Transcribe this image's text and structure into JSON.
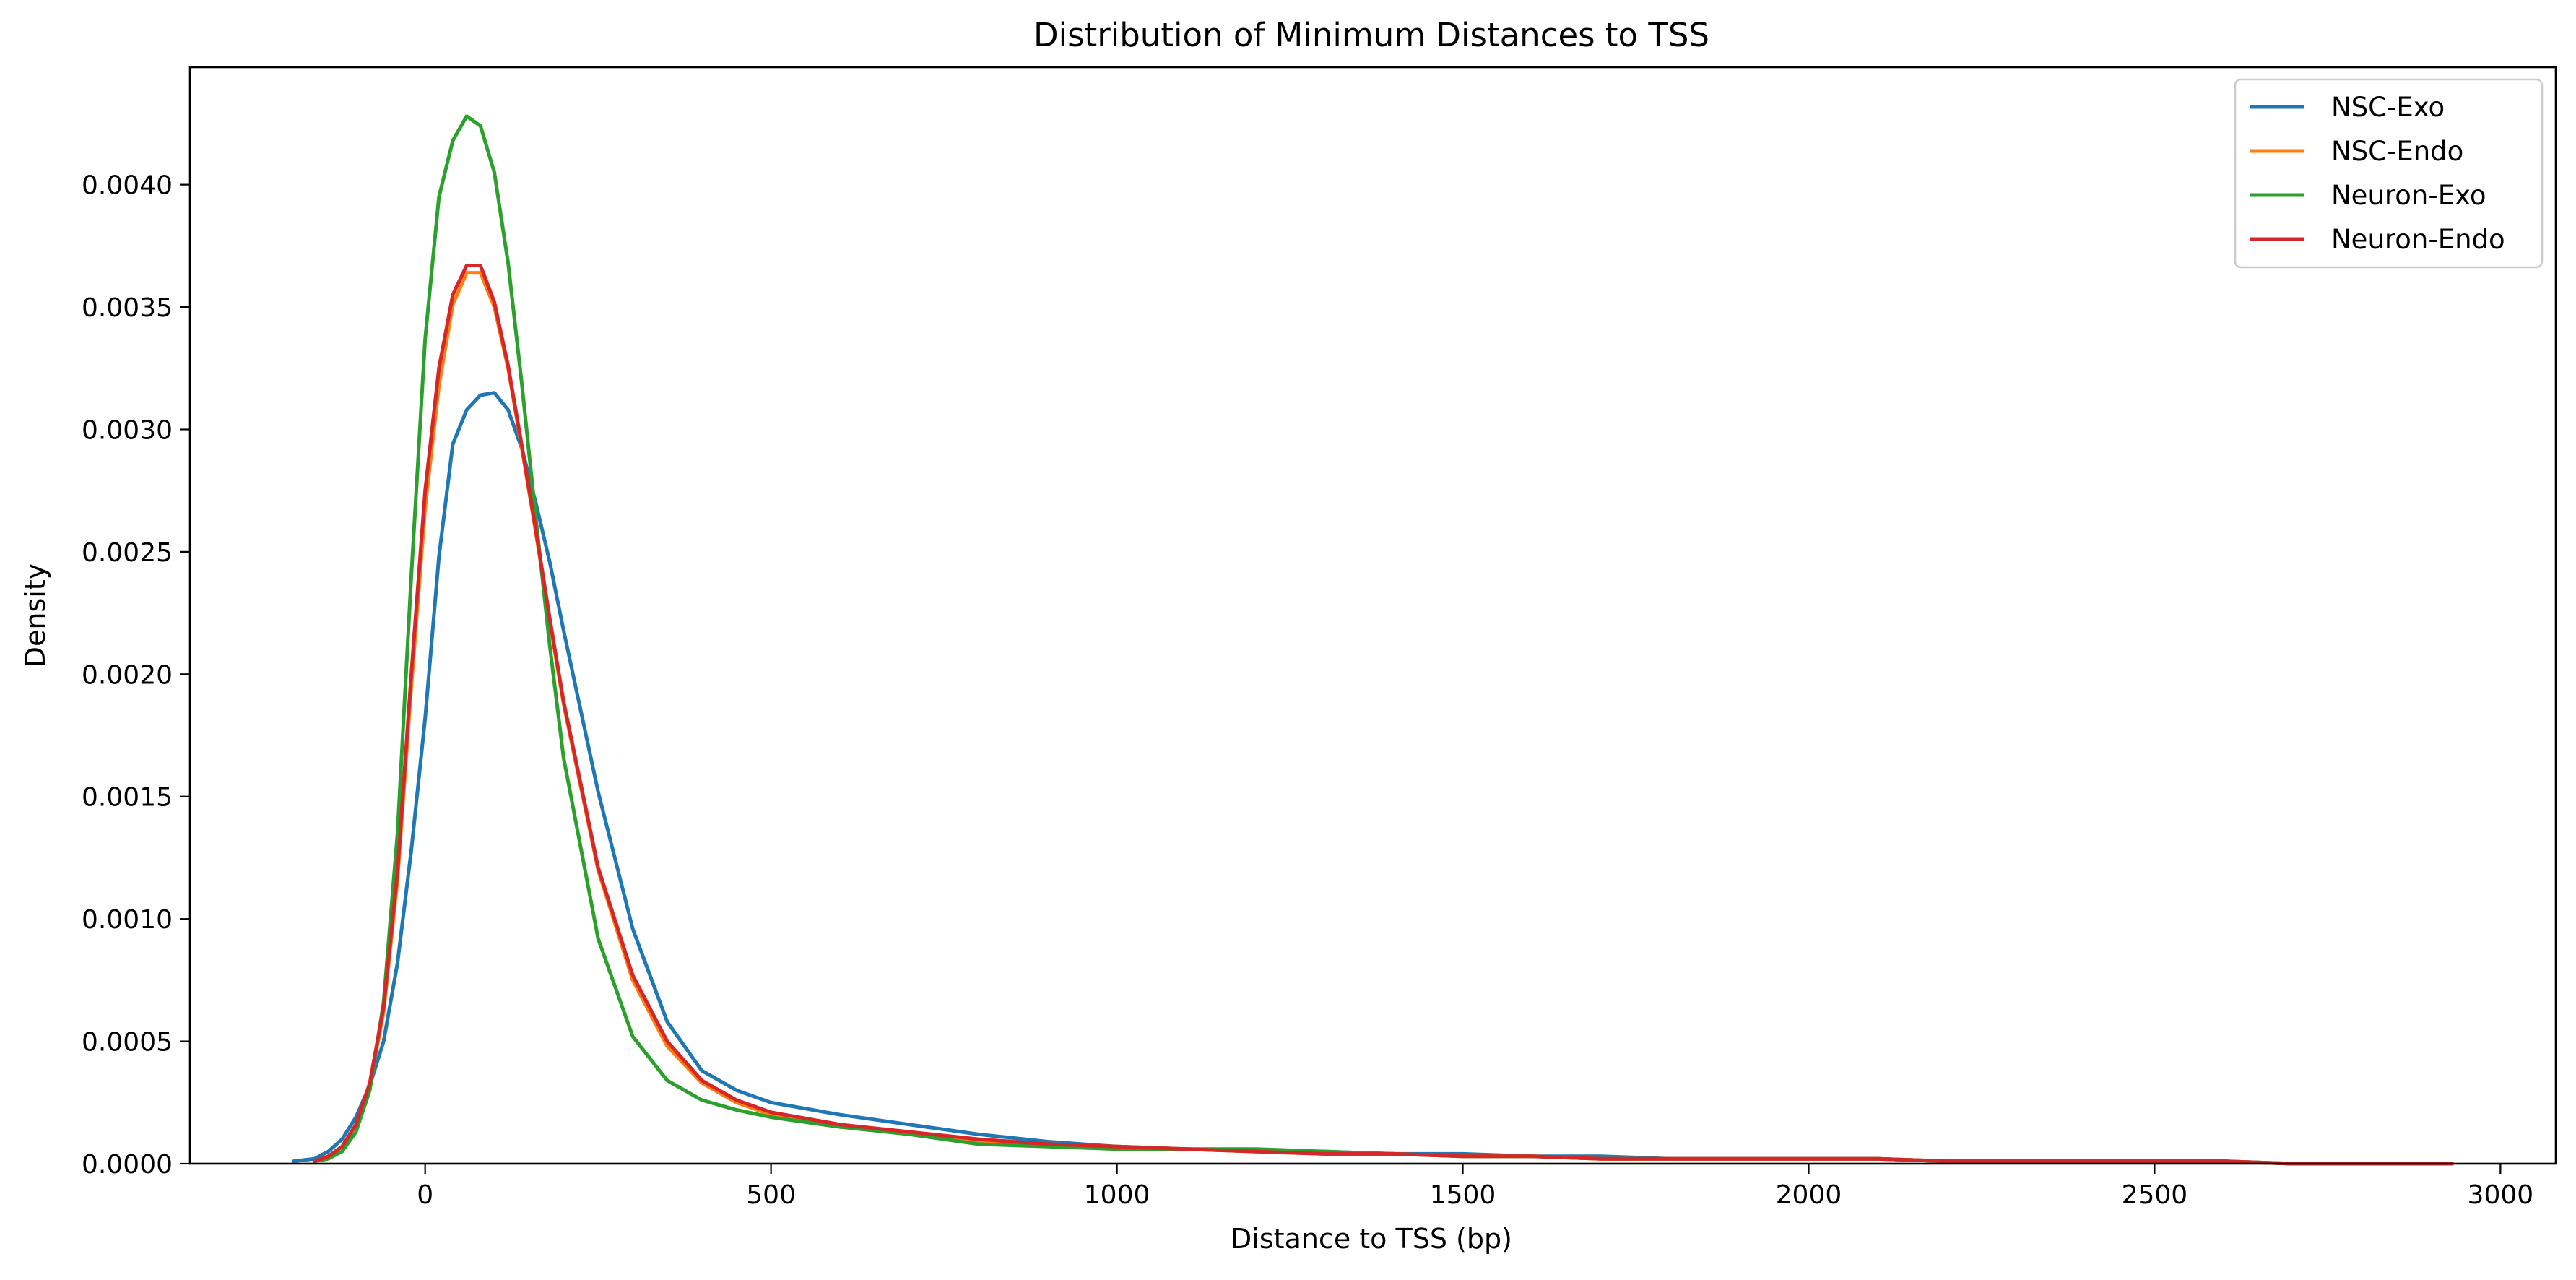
{
  "chart_data": {
    "type": "line",
    "title": "Distribution of Minimum Distances to TSS",
    "xlabel": "Distance to TSS (bp)",
    "ylabel": "Density",
    "xlim": [
      -340,
      3080
    ],
    "ylim": [
      0,
      0.00448
    ],
    "x_ticks": [
      0,
      500,
      1000,
      1500,
      2000,
      2500,
      3000
    ],
    "x_tick_labels": [
      "0",
      "500",
      "1000",
      "1500",
      "2000",
      "2500",
      "3000"
    ],
    "y_ticks": [
      0,
      0.0005,
      0.001,
      0.0015,
      0.002,
      0.0025,
      0.003,
      0.0035,
      0.004
    ],
    "y_tick_labels": [
      "0.0000",
      "0.0005",
      "0.0010",
      "0.0015",
      "0.0020",
      "0.0025",
      "0.0030",
      "0.0035",
      "0.0040"
    ],
    "grid": false,
    "legend_position": "top-right",
    "series": [
      {
        "name": "NSC-Exo",
        "color": "#1f77b4",
        "x": [
          -190,
          -160,
          -140,
          -120,
          -100,
          -80,
          -60,
          -40,
          -20,
          0,
          20,
          40,
          60,
          80,
          100,
          120,
          140,
          160,
          180,
          200,
          250,
          300,
          350,
          400,
          450,
          500,
          600,
          700,
          800,
          900,
          1000,
          1100,
          1200,
          1300,
          1400,
          1500,
          1600,
          1700,
          1800,
          1900,
          2000,
          2100,
          2200,
          2300,
          2400,
          2500,
          2600,
          2700,
          2800,
          2930
        ],
        "y": [
          1e-05,
          2e-05,
          5e-05,
          0.0001,
          0.00019,
          0.00032,
          0.0005,
          0.00082,
          0.00128,
          0.00182,
          0.00248,
          0.00294,
          0.00308,
          0.00314,
          0.00315,
          0.00308,
          0.00292,
          0.0027,
          0.00246,
          0.00218,
          0.00152,
          0.00096,
          0.00058,
          0.00038,
          0.0003,
          0.00025,
          0.0002,
          0.00016,
          0.00012,
          9e-05,
          7e-05,
          6e-05,
          5e-05,
          5e-05,
          4e-05,
          4e-05,
          3e-05,
          3e-05,
          2e-05,
          2e-05,
          2e-05,
          2e-05,
          1e-05,
          1e-05,
          1e-05,
          1e-05,
          1e-05,
          0.0,
          0.0,
          0.0
        ]
      },
      {
        "name": "NSC-Endo",
        "color": "#ff7f0e",
        "x": [
          -160,
          -140,
          -120,
          -100,
          -80,
          -60,
          -40,
          -20,
          0,
          20,
          40,
          60,
          80,
          100,
          120,
          140,
          160,
          180,
          200,
          250,
          300,
          350,
          400,
          450,
          500,
          600,
          700,
          800,
          900,
          1000,
          1100,
          1200,
          1300,
          1400,
          1500,
          1600,
          1700,
          1800,
          1900,
          2000,
          2100,
          2200,
          2300,
          2400,
          2500,
          2600,
          2700,
          2800,
          2930
        ],
        "y": [
          1e-05,
          3e-05,
          7e-05,
          0.00016,
          0.00032,
          0.00062,
          0.00116,
          0.00195,
          0.00268,
          0.00318,
          0.00351,
          0.00364,
          0.00364,
          0.0035,
          0.00325,
          0.00292,
          0.00258,
          0.00222,
          0.00188,
          0.0012,
          0.00075,
          0.00048,
          0.00033,
          0.00025,
          0.0002,
          0.00015,
          0.00013,
          9e-05,
          8e-05,
          7e-05,
          6e-05,
          5e-05,
          4e-05,
          4e-05,
          3e-05,
          3e-05,
          2e-05,
          2e-05,
          2e-05,
          2e-05,
          2e-05,
          1e-05,
          1e-05,
          1e-05,
          1e-05,
          1e-05,
          0.0,
          0.0,
          0.0
        ]
      },
      {
        "name": "Neuron-Exo",
        "color": "#2ca02c",
        "x": [
          -160,
          -140,
          -120,
          -100,
          -80,
          -60,
          -40,
          -20,
          0,
          20,
          40,
          60,
          80,
          100,
          120,
          140,
          160,
          180,
          200,
          250,
          300,
          350,
          400,
          450,
          500,
          600,
          700,
          800,
          900,
          1000,
          1100,
          1200,
          1300,
          1400,
          1500,
          1600,
          1700,
          1800,
          1900,
          2000,
          2100,
          2200,
          2300,
          2400,
          2500,
          2600,
          2700,
          2800,
          2930
        ],
        "y": [
          1e-05,
          2e-05,
          5e-05,
          0.00013,
          0.0003,
          0.00066,
          0.00135,
          0.0024,
          0.00337,
          0.00395,
          0.00418,
          0.00428,
          0.00424,
          0.00405,
          0.00368,
          0.00318,
          0.00264,
          0.00212,
          0.00166,
          0.00092,
          0.00052,
          0.00034,
          0.00026,
          0.00022,
          0.00019,
          0.00015,
          0.00012,
          8e-05,
          7e-05,
          6e-05,
          6e-05,
          6e-05,
          5e-05,
          4e-05,
          3e-05,
          3e-05,
          2e-05,
          2e-05,
          2e-05,
          2e-05,
          2e-05,
          1e-05,
          1e-05,
          1e-05,
          1e-05,
          1e-05,
          0.0,
          0.0,
          0.0
        ]
      },
      {
        "name": "Neuron-Endo",
        "color": "#d62728",
        "x": [
          -160,
          -140,
          -120,
          -100,
          -80,
          -60,
          -40,
          -20,
          0,
          20,
          40,
          60,
          80,
          100,
          120,
          140,
          160,
          180,
          200,
          250,
          300,
          350,
          400,
          450,
          500,
          600,
          700,
          800,
          900,
          1000,
          1100,
          1200,
          1300,
          1400,
          1500,
          1600,
          1700,
          1800,
          1900,
          2000,
          2100,
          2200,
          2300,
          2400,
          2500,
          2600,
          2700,
          2800,
          2930
        ],
        "y": [
          1e-05,
          3e-05,
          7e-05,
          0.00016,
          0.00033,
          0.00064,
          0.00119,
          0.002,
          0.00275,
          0.00325,
          0.00355,
          0.00367,
          0.00367,
          0.00352,
          0.00326,
          0.00293,
          0.00259,
          0.00223,
          0.00189,
          0.00121,
          0.00077,
          0.0005,
          0.00034,
          0.00026,
          0.00021,
          0.00016,
          0.00013,
          0.0001,
          8e-05,
          7e-05,
          6e-05,
          5e-05,
          4e-05,
          4e-05,
          3e-05,
          3e-05,
          2e-05,
          2e-05,
          2e-05,
          2e-05,
          2e-05,
          1e-05,
          1e-05,
          1e-05,
          1e-05,
          1e-05,
          0.0,
          0.0,
          0.0
        ]
      }
    ]
  }
}
